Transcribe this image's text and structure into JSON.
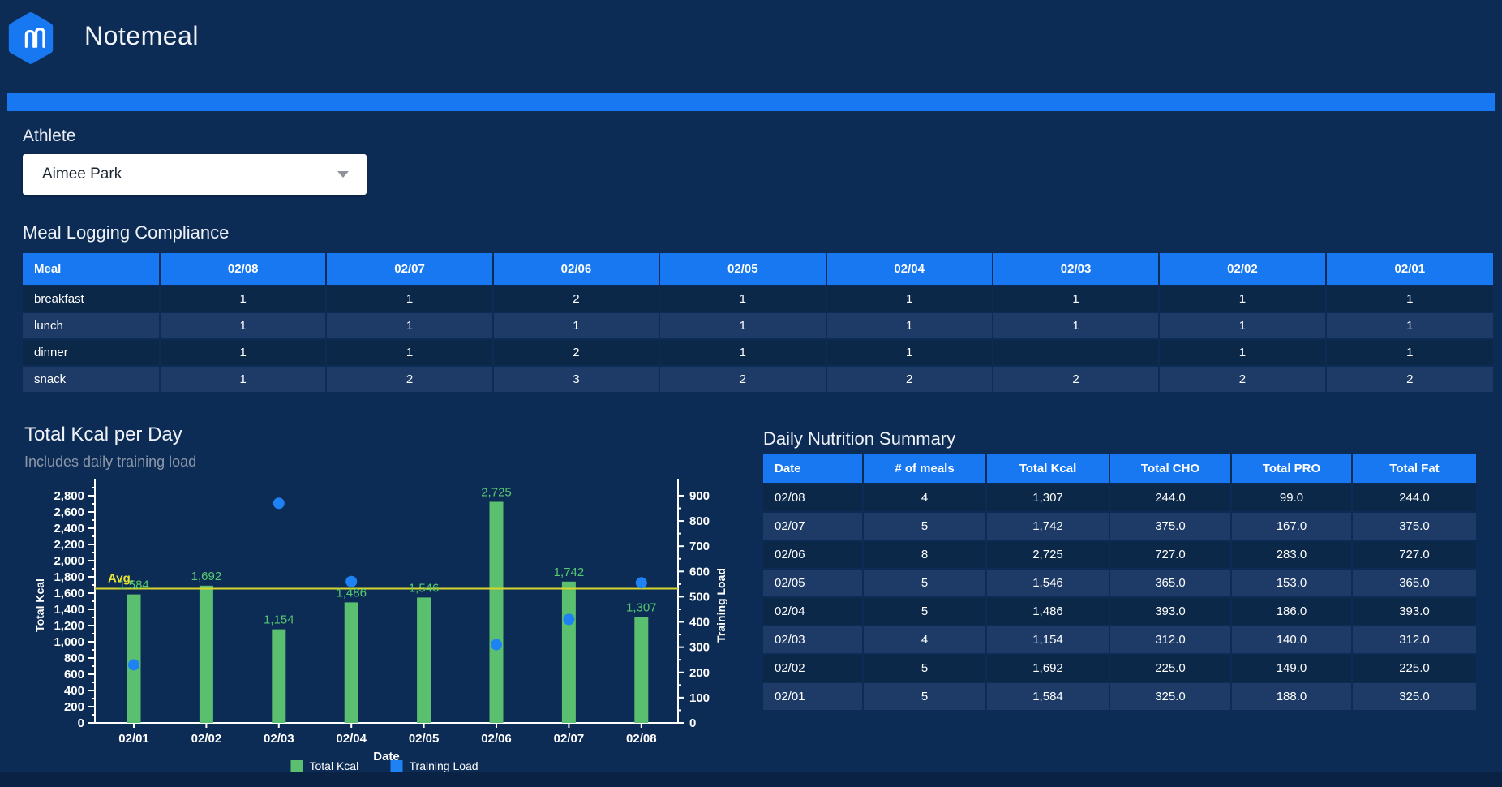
{
  "header": {
    "app_title": "Notemeal"
  },
  "athlete": {
    "label": "Athlete",
    "selected": "Aimee Park"
  },
  "colors": {
    "brand_blue": "#1778f2",
    "bar_green": "#5abf6e",
    "label_green": "#55c96f",
    "dot_blue": "#1e82f5",
    "avg_yellow": "#d6d52e",
    "row_dark": "#0c2849",
    "row_light": "#1d3b66",
    "background": "#0d2c55"
  },
  "compliance": {
    "title": "Meal Logging Compliance",
    "meal_header": "Meal",
    "date_columns": [
      "02/08",
      "02/07",
      "02/06",
      "02/05",
      "02/04",
      "02/03",
      "02/02",
      "02/01"
    ],
    "rows": [
      {
        "meal": "breakfast",
        "values": [
          "1",
          "1",
          "2",
          "1",
          "1",
          "1",
          "1",
          "1"
        ]
      },
      {
        "meal": "lunch",
        "values": [
          "1",
          "1",
          "1",
          "1",
          "1",
          "1",
          "1",
          "1"
        ]
      },
      {
        "meal": "dinner",
        "values": [
          "1",
          "1",
          "2",
          "1",
          "1",
          "",
          "1",
          "1"
        ]
      },
      {
        "meal": "snack",
        "values": [
          "1",
          "2",
          "3",
          "2",
          "2",
          "2",
          "2",
          "2"
        ]
      }
    ]
  },
  "chart_data": {
    "type": "bar",
    "title": "Total Kcal per Day",
    "subtitle": "Includes daily training load",
    "categories": [
      "02/01",
      "02/02",
      "02/03",
      "02/04",
      "02/05",
      "02/06",
      "02/07",
      "02/08"
    ],
    "series": [
      {
        "name": "Total Kcal",
        "type": "bar",
        "axis": "left",
        "color": "#5abf6e",
        "values": [
          1584,
          1692,
          1154,
          1486,
          1546,
          2725,
          1742,
          1307
        ]
      },
      {
        "name": "Training Load",
        "type": "scatter",
        "axis": "right",
        "color": "#1e82f5",
        "values": [
          230,
          null,
          870,
          560,
          null,
          310,
          410,
          555
        ]
      }
    ],
    "avg_line": {
      "label": "Avg.",
      "value": 1654.5,
      "color": "#d6d52e"
    },
    "xlabel": "Date",
    "y_left": {
      "label": "Total Kcal",
      "min": 0,
      "max": 2900,
      "tick_step": 200,
      "minor_step": 100
    },
    "y_right": {
      "label": "Training Load",
      "min": 0,
      "max": 932,
      "tick_step": 100,
      "minor_step": 50
    },
    "legend_position": "bottom",
    "grid": false
  },
  "nutrition": {
    "title": "Daily Nutrition Summary",
    "columns": [
      {
        "label": "Date",
        "sort": "desc"
      },
      {
        "label": "# of meals",
        "sort": "none"
      },
      {
        "label": "Total Kcal",
        "sort": "none"
      },
      {
        "label": "Total CHO",
        "sort": "none"
      },
      {
        "label": "Total PRO",
        "sort": "none"
      },
      {
        "label": "Total Fat",
        "sort": "none"
      }
    ],
    "rows": [
      [
        "02/08",
        "4",
        "1,307",
        "244.0",
        "99.0",
        "244.0"
      ],
      [
        "02/07",
        "5",
        "1,742",
        "375.0",
        "167.0",
        "375.0"
      ],
      [
        "02/06",
        "8",
        "2,725",
        "727.0",
        "283.0",
        "727.0"
      ],
      [
        "02/05",
        "5",
        "1,546",
        "365.0",
        "153.0",
        "365.0"
      ],
      [
        "02/04",
        "5",
        "1,486",
        "393.0",
        "186.0",
        "393.0"
      ],
      [
        "02/03",
        "4",
        "1,154",
        "312.0",
        "140.0",
        "312.0"
      ],
      [
        "02/02",
        "5",
        "1,692",
        "225.0",
        "149.0",
        "225.0"
      ],
      [
        "02/01",
        "5",
        "1,584",
        "325.0",
        "188.0",
        "325.0"
      ]
    ]
  }
}
